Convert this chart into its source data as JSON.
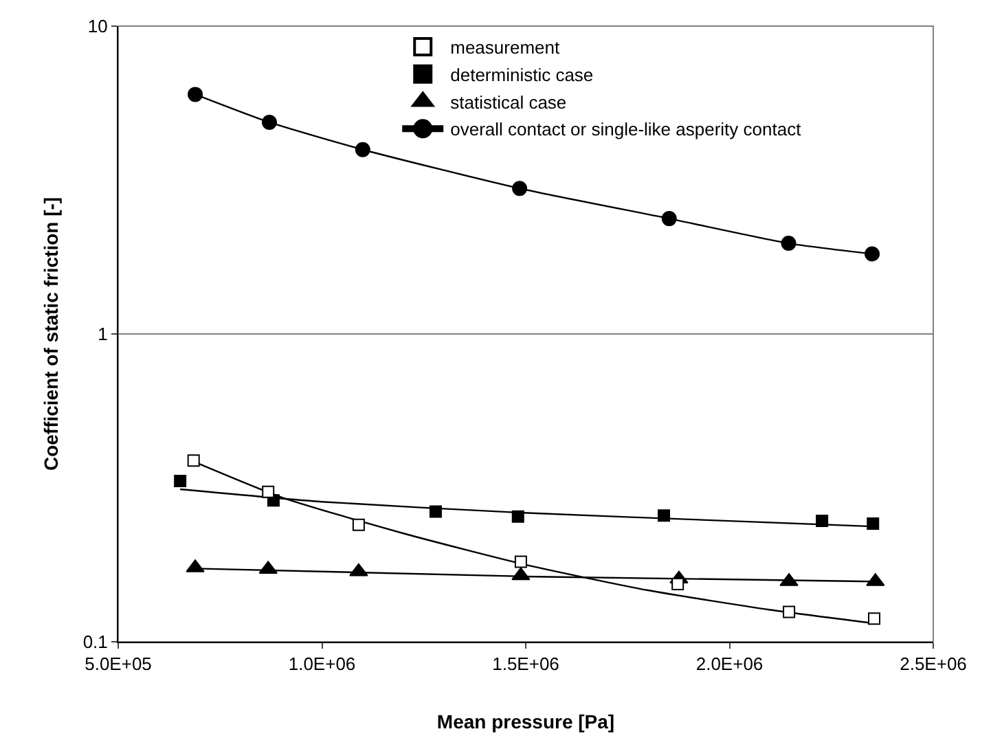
{
  "chart_data": {
    "type": "scatter",
    "xlabel": "Mean pressure [Pa]",
    "ylabel": "Coefficient of static friction [-]",
    "log": "y",
    "xlim": [
      500000,
      2500000
    ],
    "xticks": [
      {
        "value": 500000,
        "label": "5.0E+05"
      },
      {
        "value": 1000000,
        "label": "1.0E+06"
      },
      {
        "value": 1500000,
        "label": "1.5E+06"
      },
      {
        "value": 2000000,
        "label": "2.0E+06"
      },
      {
        "value": 2500000,
        "label": "2.5E+06"
      }
    ],
    "ylim": [
      0.1,
      10
    ],
    "yticks": [
      0.1,
      1,
      10
    ],
    "grid": "y",
    "legend": "top",
    "series": [
      {
        "name": "measurement",
        "marker": "square",
        "color": "#ffffff",
        "x": [
          685000,
          868000,
          1090000,
          1488000,
          1873000,
          2146000,
          2355000
        ],
        "values": [
          0.388,
          0.307,
          0.24,
          0.182,
          0.154,
          0.125,
          0.119
        ]
      },
      {
        "name": "deterministic case",
        "marker": "square",
        "color": "#000000",
        "x": [
          652000,
          881000,
          1279000,
          1481000,
          1839000,
          2227000,
          2352000
        ],
        "values": [
          0.333,
          0.288,
          0.265,
          0.255,
          0.257,
          0.247,
          0.242
        ]
      },
      {
        "name": "statistical case",
        "marker": "triangle",
        "color": "#000000",
        "x": [
          689000,
          868000,
          1090000,
          1488000,
          1876000,
          2146000,
          2358000
        ],
        "values": [
          0.174,
          0.172,
          0.169,
          0.164,
          0.16,
          0.157,
          0.157
        ]
      },
      {
        "name": "overall contact or single-like asperity contact",
        "type": "line",
        "marker": "circle",
        "color": "#000000",
        "x": [
          689000,
          871000,
          1100000,
          1485000,
          1852000,
          2145000,
          2350000
        ],
        "values": [
          6.0,
          4.87,
          3.97,
          2.97,
          2.37,
          1.97,
          1.82
        ]
      },
      {
        "type": "line",
        "marker": "none",
        "color": "#000000",
        "x": [
          685000,
          900000,
          1200000,
          1500000,
          1800000,
          2100000,
          2350000
        ],
        "values": [
          0.385,
          0.295,
          0.225,
          0.178,
          0.147,
          0.127,
          0.115
        ]
      },
      {
        "type": "line",
        "marker": "none",
        "color": "#000000",
        "x": [
          652000,
          1000000,
          1480000,
          2000000,
          2350000
        ],
        "values": [
          0.313,
          0.285,
          0.263,
          0.247,
          0.237
        ]
      },
      {
        "type": "line",
        "marker": "none",
        "color": "#000000",
        "x": [
          689000,
          1500000,
          2350000
        ],
        "values": [
          0.173,
          0.163,
          0.157
        ]
      }
    ]
  }
}
